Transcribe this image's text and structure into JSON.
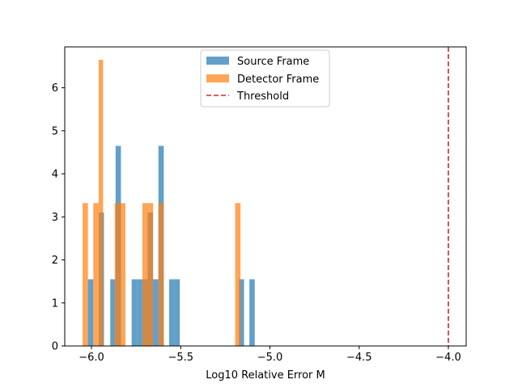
{
  "chart_data": {
    "type": "bar",
    "title": "",
    "xlabel": "Log10 Relative Error M",
    "ylabel": "",
    "xlim": [
      -6.15,
      -3.9
    ],
    "ylim": [
      0,
      6.95
    ],
    "xticks": [
      -6.0,
      -5.5,
      -5.0,
      -4.5,
      -4.0
    ],
    "xtick_labels": [
      "−6.0",
      "−5.5",
      "−5.0",
      "−4.5",
      "−4.0"
    ],
    "yticks": [
      0,
      1,
      2,
      3,
      4,
      5,
      6
    ],
    "ytick_labels": [
      "0",
      "1",
      "2",
      "3",
      "4",
      "5",
      "6"
    ],
    "grid": false,
    "legend_position": "top-center",
    "series": [
      {
        "name": "Source Frame",
        "color": "#1f77b4",
        "opacity": 0.7,
        "bins": [
          {
            "x0": -6.02,
            "x1": -5.99,
            "value": 1.55
          },
          {
            "x0": -5.96,
            "x1": -5.93,
            "value": 3.1
          },
          {
            "x0": -5.895,
            "x1": -5.865,
            "value": 1.55
          },
          {
            "x0": -5.865,
            "x1": -5.835,
            "value": 4.65
          },
          {
            "x0": -5.805,
            "x1": -5.775,
            "value": 0
          },
          {
            "x0": -5.775,
            "x1": -5.745,
            "value": 1.55
          },
          {
            "x0": -5.745,
            "x1": -5.715,
            "value": 1.55
          },
          {
            "x0": -5.715,
            "x1": -5.685,
            "value": 1.55
          },
          {
            "x0": -5.685,
            "x1": -5.655,
            "value": 3.1
          },
          {
            "x0": -5.655,
            "x1": -5.625,
            "value": 1.55
          },
          {
            "x0": -5.625,
            "x1": -5.595,
            "value": 4.65
          },
          {
            "x0": -5.565,
            "x1": -5.535,
            "value": 1.55
          },
          {
            "x0": -5.535,
            "x1": -5.505,
            "value": 1.55
          },
          {
            "x0": -5.175,
            "x1": -5.145,
            "value": 1.55
          },
          {
            "x0": -5.115,
            "x1": -5.085,
            "value": 1.55
          }
        ]
      },
      {
        "name": "Detector Frame",
        "color": "#ff7f0e",
        "opacity": 0.7,
        "bins": [
          {
            "x0": -6.05,
            "x1": -6.02,
            "value": 3.32
          },
          {
            "x0": -5.99,
            "x1": -5.96,
            "value": 3.32
          },
          {
            "x0": -5.96,
            "x1": -5.935,
            "value": 6.65
          },
          {
            "x0": -5.87,
            "x1": -5.84,
            "value": 3.32
          },
          {
            "x0": -5.84,
            "x1": -5.81,
            "value": 3.32
          },
          {
            "x0": -5.715,
            "x1": -5.685,
            "value": 3.32
          },
          {
            "x0": -5.685,
            "x1": -5.655,
            "value": 3.32
          },
          {
            "x0": -5.625,
            "x1": -5.595,
            "value": 3.32
          },
          {
            "x0": -5.195,
            "x1": -5.165,
            "value": 3.32
          }
        ]
      }
    ],
    "threshold": {
      "name": "Threshold",
      "x": -4.0,
      "color": "#d62728",
      "style": "dashed"
    }
  }
}
